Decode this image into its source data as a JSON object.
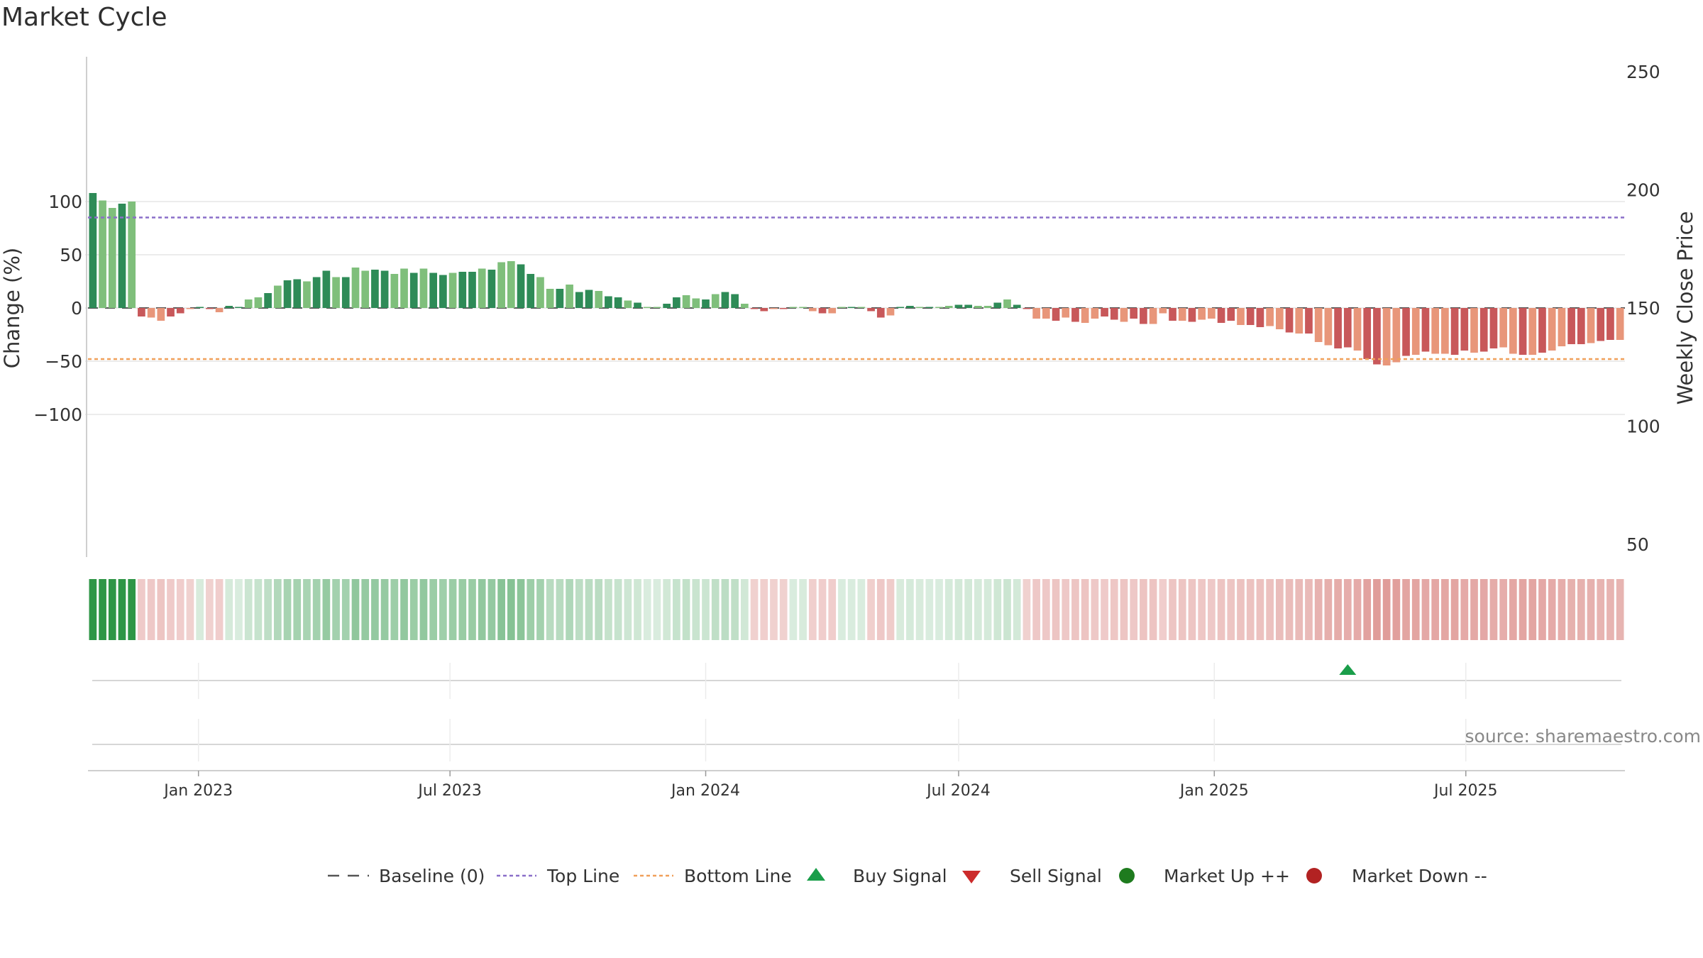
{
  "title": "Market Cycle",
  "source": "source: sharemaestro.com",
  "chart_data": {
    "type": "bar",
    "title": "Market Cycle",
    "ylabel": "Change (%)",
    "ylabel_right": "Weekly Close Price",
    "ylim": [
      -118,
      118
    ],
    "ylim_right": [
      50,
      260
    ],
    "y_ticks": [
      "100",
      "50",
      "0",
      "−50",
      "−100"
    ],
    "y_tick_values": [
      100,
      50,
      0,
      -50,
      -100
    ],
    "y_right_ticks": [
      "250",
      "200",
      "150",
      "100",
      "50"
    ],
    "y_right_tick_values": [
      250,
      200,
      150,
      100,
      50
    ],
    "x_ticks": [
      "Jan 2023",
      "Jul 2023",
      "Jan 2024",
      "Jul 2024",
      "Jan 2025",
      "Jul 2025"
    ],
    "x_tick_dates": [
      "2023-01-01",
      "2023-07-01",
      "2024-01-01",
      "2024-07-01",
      "2025-01-01",
      "2025-07-01"
    ],
    "start_date": "2022-10-17",
    "top_line": 85,
    "bottom_line": -48,
    "values": [
      108,
      101,
      94,
      98,
      100,
      -8,
      -9,
      -12,
      -8,
      -5,
      -1,
      1,
      -1,
      -4,
      2,
      0,
      8,
      10,
      14,
      21,
      26,
      27,
      25,
      29,
      35,
      29,
      29,
      38,
      35,
      36,
      35,
      32,
      37,
      33,
      37,
      33,
      31,
      33,
      34,
      34,
      37,
      36,
      43,
      44,
      41,
      32,
      29,
      18,
      18,
      22,
      15,
      17,
      16,
      11,
      10,
      7,
      5,
      0,
      0,
      4,
      10,
      12,
      9,
      8,
      13,
      15,
      13,
      4,
      -1,
      -3,
      -1,
      -1,
      0,
      1,
      -3,
      -5,
      -5,
      0,
      0,
      0,
      -3,
      -9,
      -7,
      1,
      2,
      1,
      0,
      0,
      2,
      3,
      3,
      2,
      2,
      5,
      8,
      3,
      -1,
      -10,
      -10,
      -12,
      -9,
      -13,
      -14,
      -10,
      -8,
      -11,
      -13,
      -10,
      -15,
      -15,
      -5,
      -12,
      -12,
      -13,
      -11,
      -10,
      -14,
      -12,
      -16,
      -16,
      -18,
      -17,
      -20,
      -23,
      -24,
      -24,
      -32,
      -35,
      -38,
      -37,
      -40,
      -48,
      -53,
      -54,
      -51,
      -45,
      -44,
      -41,
      -43,
      -43,
      -44,
      -40,
      -42,
      -41,
      -38,
      -37,
      -43,
      -44,
      -44,
      -42,
      -40,
      -36,
      -34,
      -34,
      -33,
      -31,
      -30,
      -30
    ],
    "legend": [
      "Baseline (0)",
      "Top Line",
      "Bottom Line",
      "Buy Signal",
      "Sell Signal",
      "Market Up ++",
      "Market Down --"
    ],
    "buy_signals": [
      {
        "date": "2025-04-07",
        "label": "Buy Signal"
      }
    ],
    "sell_signals": [],
    "grid": true,
    "legend_position": "bottom"
  },
  "colors": {
    "up_strong": "#2e8b57",
    "up_light": "#7fbf7b",
    "down_strong": "#c8585a",
    "down_light": "#e8967a",
    "top_line": "#8a6fc9",
    "bottom_line": "#f0a05a",
    "buy": "#1a9e4a",
    "sell": "#cc2b2b",
    "market_up": "#1e7b1e",
    "market_down": "#b22222",
    "grid": "#e6e6e6",
    "baseline": "#555555"
  }
}
